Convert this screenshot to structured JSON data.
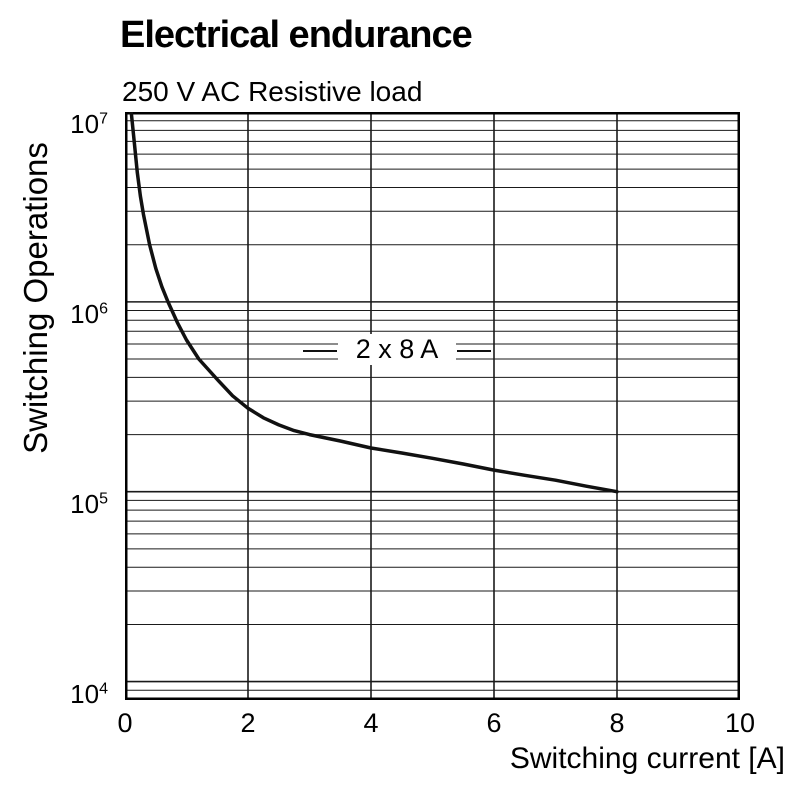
{
  "chart_data": {
    "type": "line",
    "title": "Electrical endurance",
    "subtitle": "250 V AC Resistive load",
    "xlabel": "Switching current [A]",
    "ylabel": "Switching Operations",
    "x_axis": {
      "min": 0,
      "max": 10,
      "scale": "linear",
      "ticks": [
        0,
        2,
        4,
        6,
        8,
        10
      ]
    },
    "y_axis": {
      "min": 8000,
      "max": 10000000,
      "scale": "log",
      "ticks": [
        {
          "value": 10000,
          "base": "10",
          "exp": "4"
        },
        {
          "value": 100000,
          "base": "10",
          "exp": "5"
        },
        {
          "value": 1000000,
          "base": "10",
          "exp": "6"
        },
        {
          "value": 10000000,
          "base": "10",
          "exp": "7"
        }
      ]
    },
    "grid": {
      "vertical_at": [
        2,
        4,
        6,
        8
      ],
      "log_minor_horizontal": true
    },
    "series": [
      {
        "name": "2 x 8 A",
        "points": [
          [
            0.1,
            10000000.0
          ],
          [
            0.15,
            7000000.0
          ],
          [
            0.2,
            4800000.0
          ],
          [
            0.25,
            3600000.0
          ],
          [
            0.3,
            2900000.0
          ],
          [
            0.4,
            2000000.0
          ],
          [
            0.5,
            1500000.0
          ],
          [
            0.6,
            1200000.0
          ],
          [
            0.7,
            1000000.0
          ],
          [
            0.85,
            780000.0
          ],
          [
            1.0,
            630000.0
          ],
          [
            1.2,
            500000.0
          ],
          [
            1.5,
            390000.0
          ],
          [
            1.75,
            320000.0
          ],
          [
            2.0,
            275000.0
          ],
          [
            2.25,
            245000.0
          ],
          [
            2.5,
            225000.0
          ],
          [
            2.75,
            210000.0
          ],
          [
            3.0,
            200000.0
          ],
          [
            3.5,
            185000.0
          ],
          [
            4.0,
            170000.0
          ],
          [
            4.5,
            160000.0
          ],
          [
            5.0,
            150000.0
          ],
          [
            5.5,
            140000.0
          ],
          [
            6.0,
            130000.0
          ],
          [
            6.5,
            122000.0
          ],
          [
            7.0,
            115000.0
          ],
          [
            7.5,
            107000.0
          ],
          [
            8.0,
            100000.0
          ]
        ]
      }
    ],
    "annotation": {
      "label": "2 x 8 A",
      "x": 4.4,
      "y": 540000
    },
    "colors": {
      "curve": "#111111",
      "grid": "#1a1a1a",
      "border": "#000000",
      "text": "#000000"
    }
  }
}
